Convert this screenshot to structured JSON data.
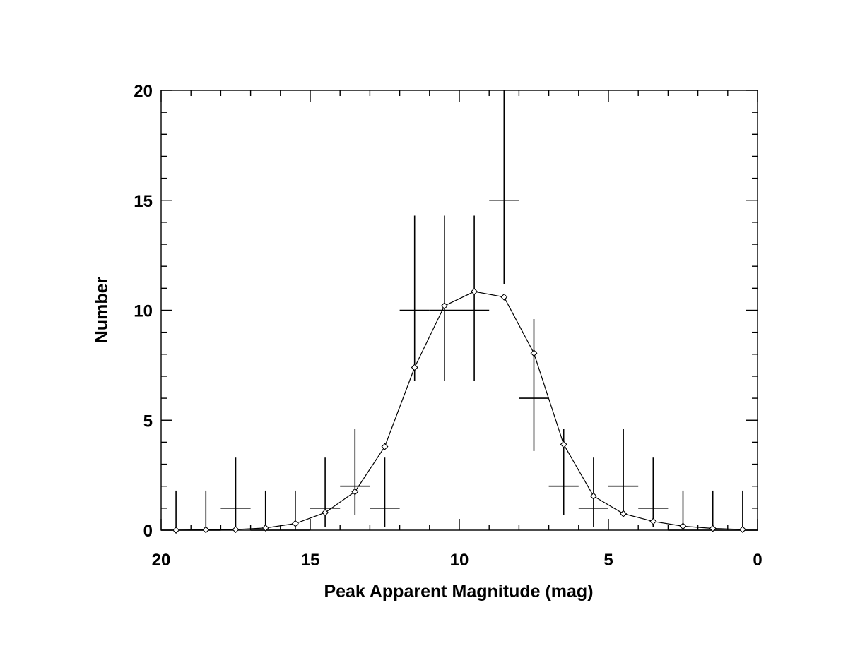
{
  "chart_data": {
    "type": "scatter",
    "title": "",
    "xlabel": "Peak Apparent Magnitude (mag)",
    "ylabel": "Number",
    "xlim": [
      20,
      0
    ],
    "ylim": [
      0,
      20
    ],
    "x_reversed": true,
    "grid": false,
    "legend": "none",
    "x_ticks": [
      20,
      15,
      10,
      5,
      0
    ],
    "x_tick_labels": [
      "20",
      "15",
      "10",
      "5",
      "0"
    ],
    "y_ticks": [
      0,
      5,
      10,
      15,
      20
    ],
    "y_tick_labels": [
      "0",
      "5",
      "10",
      "15",
      "20"
    ],
    "series": [
      {
        "kind": "binned counts with error bars",
        "color": "#000000",
        "bins": [
          {
            "x": 19.5,
            "x_lo": 20,
            "x_hi": 19,
            "y": 0,
            "y_lo": 0,
            "y_hi": 1.8
          },
          {
            "x": 18.5,
            "x_lo": 19,
            "x_hi": 18,
            "y": 0,
            "y_lo": 0,
            "y_hi": 1.8
          },
          {
            "x": 17.5,
            "x_lo": 18,
            "x_hi": 17,
            "y": 1,
            "y_lo": 0,
            "y_hi": 3.3
          },
          {
            "x": 16.5,
            "x_lo": 17,
            "x_hi": 16,
            "y": 0,
            "y_lo": 0,
            "y_hi": 1.8
          },
          {
            "x": 15.5,
            "x_lo": 16,
            "x_hi": 15,
            "y": 0,
            "y_lo": 0,
            "y_hi": 1.8
          },
          {
            "x": 14.5,
            "x_lo": 15,
            "x_hi": 14,
            "y": 1,
            "y_lo": 0.15,
            "y_hi": 3.3
          },
          {
            "x": 13.5,
            "x_lo": 14,
            "x_hi": 13,
            "y": 2,
            "y_lo": 0.7,
            "y_hi": 4.6
          },
          {
            "x": 12.5,
            "x_lo": 13,
            "x_hi": 12,
            "y": 1,
            "y_lo": 0.15,
            "y_hi": 3.3
          },
          {
            "x": 11.5,
            "x_lo": 12,
            "x_hi": 11,
            "y": 10,
            "y_lo": 6.8,
            "y_hi": 14.3
          },
          {
            "x": 10.5,
            "x_lo": 11,
            "x_hi": 10,
            "y": 10,
            "y_lo": 6.8,
            "y_hi": 14.3
          },
          {
            "x": 9.5,
            "x_lo": 10,
            "x_hi": 9,
            "y": 10,
            "y_lo": 6.8,
            "y_hi": 14.3
          },
          {
            "x": 8.5,
            "x_lo": 9,
            "x_hi": 8,
            "y": 15,
            "y_lo": 11.2,
            "y_hi": 20
          },
          {
            "x": 7.5,
            "x_lo": 8,
            "x_hi": 7,
            "y": 6,
            "y_lo": 3.6,
            "y_hi": 9.6
          },
          {
            "x": 6.5,
            "x_lo": 7,
            "x_hi": 6,
            "y": 2,
            "y_lo": 0.7,
            "y_hi": 4.6
          },
          {
            "x": 5.5,
            "x_lo": 6,
            "x_hi": 5,
            "y": 1,
            "y_lo": 0.15,
            "y_hi": 3.3
          },
          {
            "x": 4.5,
            "x_lo": 5,
            "x_hi": 4,
            "y": 2,
            "y_lo": 0.7,
            "y_hi": 4.6
          },
          {
            "x": 3.5,
            "x_lo": 4,
            "x_hi": 3,
            "y": 1,
            "y_lo": 0.15,
            "y_hi": 3.3
          },
          {
            "x": 2.5,
            "x_lo": 3,
            "x_hi": 2,
            "y": 0,
            "y_lo": 0,
            "y_hi": 1.8
          },
          {
            "x": 1.5,
            "x_lo": 2,
            "x_hi": 1,
            "y": 0,
            "y_lo": 0,
            "y_hi": 1.8
          },
          {
            "x": 0.5,
            "x_lo": 1,
            "x_hi": 0,
            "y": 0,
            "y_lo": 0,
            "y_hi": 1.8
          }
        ]
      },
      {
        "kind": "model curve with diamond markers",
        "color": "#000000",
        "x": [
          19.5,
          18.5,
          17.5,
          16.5,
          15.5,
          14.5,
          13.5,
          12.5,
          11.5,
          10.5,
          9.5,
          8.5,
          7.5,
          6.5,
          5.5,
          4.5,
          3.5,
          2.5,
          1.5,
          0.5
        ],
        "y": [
          0.0,
          0.02,
          0.03,
          0.1,
          0.3,
          0.8,
          1.75,
          3.8,
          7.4,
          10.2,
          10.85,
          10.6,
          8.05,
          3.9,
          1.55,
          0.75,
          0.4,
          0.18,
          0.08,
          0.03
        ]
      }
    ]
  }
}
